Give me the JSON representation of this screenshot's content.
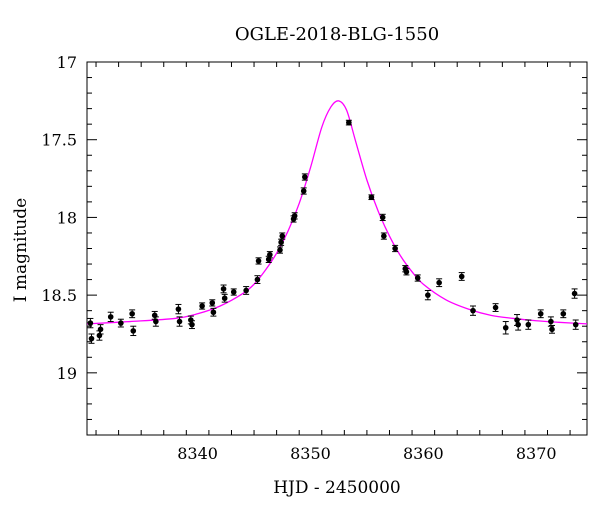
{
  "chart_data": {
    "type": "scatter",
    "title": "OGLE-2018-BLG-1550",
    "xlabel": "HJD - 2450000",
    "ylabel": "I magnitude",
    "xlim": [
      8330.2,
      8374.5
    ],
    "ylim": [
      19.4,
      17.0
    ],
    "y_inverted": true,
    "xticks": [
      8340,
      8350,
      8360,
      8370
    ],
    "xtick_labels": [
      "8340",
      "8350",
      "8360",
      "8370"
    ],
    "yticks": [
      17,
      17.5,
      18,
      18.5,
      19
    ],
    "ytick_labels": [
      "17",
      "17.5",
      "18",
      "18.5",
      "19"
    ],
    "grid": false,
    "colors": {
      "model": "#ff00ff",
      "points": "#000000"
    },
    "series": [
      {
        "kind": "points-with-errorbars",
        "x": [
          8330.5,
          8330.6,
          8331.3,
          8331.4,
          8332.3,
          8333.2,
          8334.2,
          8334.3,
          8336.2,
          8336.3,
          8338.3,
          8338.4,
          8339.4,
          8339.5,
          8340.4,
          8341.3,
          8341.4,
          8342.3,
          8342.4,
          8343.2,
          8344.3,
          8345.3,
          8345.4,
          8346.3,
          8346.4,
          8347.3,
          8347.4,
          8347.5,
          8348.5,
          8348.6,
          8349.4,
          8349.5,
          8353.4,
          8355.4,
          8356.4,
          8356.5,
          8357.5,
          8358.4,
          8358.5,
          8359.5,
          8360.4,
          8361.4,
          8363.4,
          8364.4,
          8366.4,
          8367.3,
          8368.3,
          8368.4,
          8369.3,
          8370.4,
          8371.3,
          8371.4,
          8372.4,
          8373.4,
          8373.5
        ],
        "y": [
          18.68,
          18.78,
          18.76,
          18.72,
          18.64,
          18.68,
          18.62,
          18.73,
          18.63,
          18.67,
          18.59,
          18.67,
          18.66,
          18.69,
          18.57,
          18.55,
          18.61,
          18.46,
          18.52,
          18.48,
          18.47,
          18.4,
          18.28,
          18.27,
          18.24,
          18.21,
          18.16,
          18.12,
          18.01,
          17.99,
          17.83,
          17.74,
          17.39,
          17.87,
          18.0,
          18.12,
          18.2,
          18.33,
          18.35,
          18.39,
          18.5,
          18.42,
          18.38,
          18.6,
          18.58,
          18.71,
          18.66,
          18.69,
          18.69,
          18.62,
          18.67,
          18.72,
          18.62,
          18.49,
          18.69
        ],
        "yerr": [
          0.03,
          0.03,
          0.03,
          0.03,
          0.03,
          0.025,
          0.025,
          0.03,
          0.025,
          0.03,
          0.03,
          0.03,
          0.025,
          0.025,
          0.02,
          0.02,
          0.025,
          0.025,
          0.025,
          0.02,
          0.025,
          0.025,
          0.02,
          0.02,
          0.02,
          0.02,
          0.02,
          0.02,
          0.02,
          0.02,
          0.02,
          0.02,
          0.015,
          0.015,
          0.02,
          0.02,
          0.02,
          0.02,
          0.02,
          0.02,
          0.03,
          0.025,
          0.025,
          0.03,
          0.025,
          0.04,
          0.035,
          0.035,
          0.03,
          0.025,
          0.03,
          0.025,
          0.025,
          0.03,
          0.03
        ]
      },
      {
        "kind": "model-curve",
        "color": "#ff00ff",
        "x": [
          8330.2,
          8334.0,
          8338.0,
          8340.0,
          8342.0,
          8344.0,
          8345.0,
          8346.0,
          8347.0,
          8348.0,
          8349.0,
          8350.0,
          8351.0,
          8351.8,
          8352.5,
          8353.2,
          8354.0,
          8355.0,
          8356.0,
          8357.0,
          8358.0,
          8359.0,
          8360.0,
          8362.0,
          8364.0,
          8366.0,
          8368.0,
          8370.0,
          8372.0,
          8374.5
        ],
        "y": [
          18.685,
          18.67,
          18.65,
          18.62,
          18.57,
          18.49,
          18.43,
          18.34,
          18.23,
          18.09,
          17.91,
          17.68,
          17.42,
          17.29,
          17.25,
          17.31,
          17.51,
          17.76,
          17.96,
          18.12,
          18.25,
          18.35,
          18.43,
          18.53,
          18.59,
          18.63,
          18.65,
          18.665,
          18.675,
          18.685
        ]
      }
    ]
  }
}
